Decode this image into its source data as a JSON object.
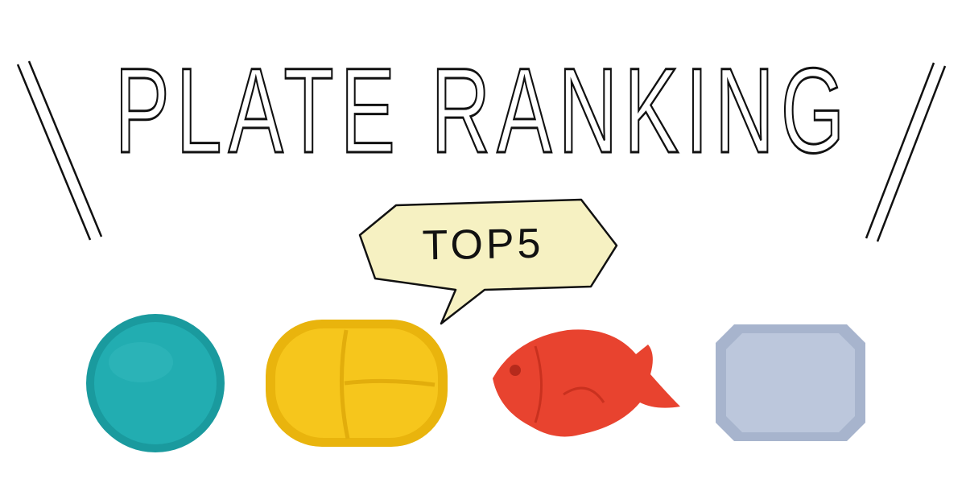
{
  "title": "PLATE RANKING",
  "badge": "TOP5",
  "colors": {
    "bubble_fill": "#f6f1c2",
    "teal_plate": "#1ea4a8",
    "yellow_plate": "#f4c318",
    "red_fish_plate": "#e8432f",
    "blue_plate": "#aebbd3"
  },
  "plates": [
    {
      "name": "teal round plate"
    },
    {
      "name": "yellow divided plate"
    },
    {
      "name": "red fish plate"
    },
    {
      "name": "blue octagonal plate"
    }
  ]
}
